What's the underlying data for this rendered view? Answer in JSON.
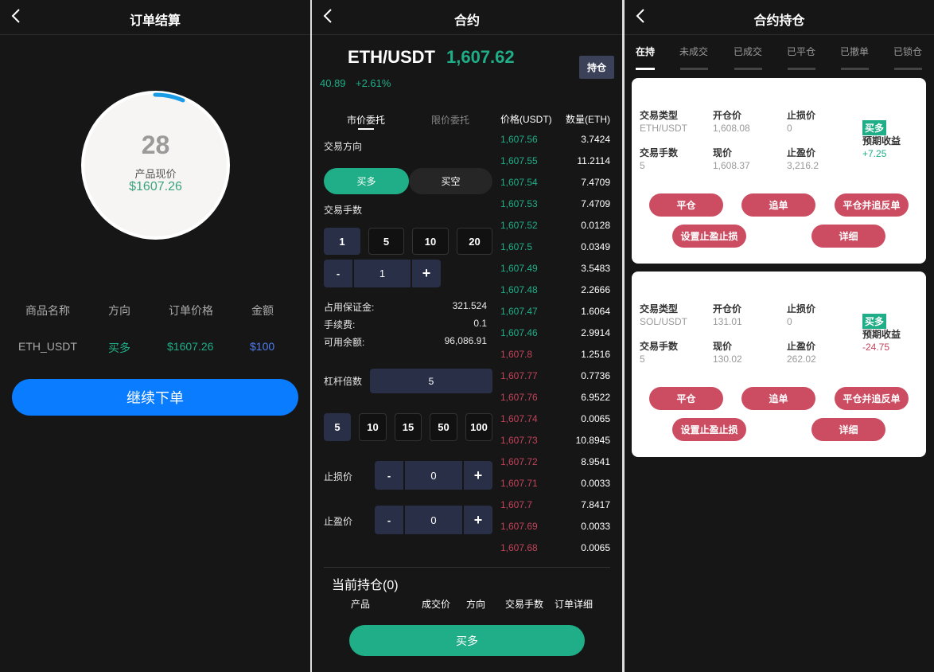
{
  "settlement": {
    "title": "订单结算",
    "countdown": "28",
    "price_label": "产品现价",
    "price": "$1607.26",
    "countdown_progress": 0.08,
    "table": {
      "headers": [
        "商品名称",
        "方向",
        "订单价格",
        "金额"
      ],
      "row": [
        "ETH_USDT",
        "买多",
        "$1607.26",
        "$100"
      ]
    },
    "continue_label": "继续下单"
  },
  "contract": {
    "title": "合约",
    "pair": "ETH/USDT",
    "price": "1,607.62",
    "change": "40.89",
    "change_pct": "+2.61%",
    "position_btn": "持仓",
    "tabs": [
      "市价委托",
      "限价委托"
    ],
    "direction_label": "交易方向",
    "buy_long": "买多",
    "buy_short": "买空",
    "lots_label": "交易手数",
    "lot_options": [
      "1",
      "5",
      "10",
      "20"
    ],
    "lots_value": "1",
    "minus": "-",
    "plus": "+",
    "margin_label": "占用保证金:",
    "margin": "321.524",
    "fee_label": "手续费:",
    "fee": "0.1",
    "balance_label": "可用余额:",
    "balance": "96,086.91",
    "leverage_label": "杠杆倍数",
    "leverage_value": "5",
    "leverage_options": [
      "5",
      "10",
      "15",
      "50",
      "100"
    ],
    "stop_loss_label": "止损价",
    "stop_loss": "0",
    "take_profit_label": "止盈价",
    "take_profit": "0",
    "orderbook": {
      "headers": [
        "价格(USDT)",
        "数量(ETH)"
      ],
      "bids": [
        [
          "1,607.56",
          "3.7424"
        ],
        [
          "1,607.55",
          "11.2114"
        ],
        [
          "1,607.54",
          "7.4709"
        ],
        [
          "1,607.53",
          "7.4709"
        ],
        [
          "1,607.52",
          "0.0128"
        ],
        [
          "1,607.5",
          "0.0349"
        ],
        [
          "1,607.49",
          "3.5483"
        ],
        [
          "1,607.48",
          "2.2666"
        ],
        [
          "1,607.47",
          "1.6064"
        ],
        [
          "1,607.46",
          "2.9914"
        ]
      ],
      "asks": [
        [
          "1,607.8",
          "1.2516"
        ],
        [
          "1,607.77",
          "0.7736"
        ],
        [
          "1,607.76",
          "6.9522"
        ],
        [
          "1,607.74",
          "0.0065"
        ],
        [
          "1,607.73",
          "10.8945"
        ],
        [
          "1,607.72",
          "8.9541"
        ],
        [
          "1,607.71",
          "0.0033"
        ],
        [
          "1,607.7",
          "7.8417"
        ],
        [
          "1,607.69",
          "0.0033"
        ],
        [
          "1,607.68",
          "0.0065"
        ]
      ]
    },
    "holdings_title": "当前持仓(0)",
    "holdings_headers": [
      "产品",
      "成交价",
      "方向",
      "交易手数",
      "订单详细"
    ],
    "submit": "买多"
  },
  "positions": {
    "title": "合约持仓",
    "tabs": [
      "在持",
      "未成交",
      "已成交",
      "已平仓",
      "已撤单",
      "已锁仓"
    ],
    "labels": {
      "type": "交易类型",
      "open": "开仓价",
      "stop_loss": "止损价",
      "lots": "交易手数",
      "current": "现价",
      "take_profit": "止盈价",
      "expected": "预期收益"
    },
    "actions": [
      "平仓",
      "追单",
      "平仓并追反单",
      "设置止盈止损",
      "详细"
    ],
    "cards": [
      {
        "type": "ETH/USDT",
        "open": "1,608.08",
        "stop_loss": "0",
        "lots": "5",
        "current": "1,608.37",
        "take_profit": "3,216.2",
        "direction": "买多",
        "expected": "+7.25"
      },
      {
        "type": "SOL/USDT",
        "open": "131.01",
        "stop_loss": "0",
        "lots": "5",
        "current": "130.02",
        "take_profit": "262.02",
        "direction": "买多",
        "expected": "-24.75"
      }
    ]
  },
  "colors": {
    "green": "#1fae87",
    "red": "#c2435a",
    "blue": "#0a7cff",
    "pill": "#cc4d62"
  }
}
